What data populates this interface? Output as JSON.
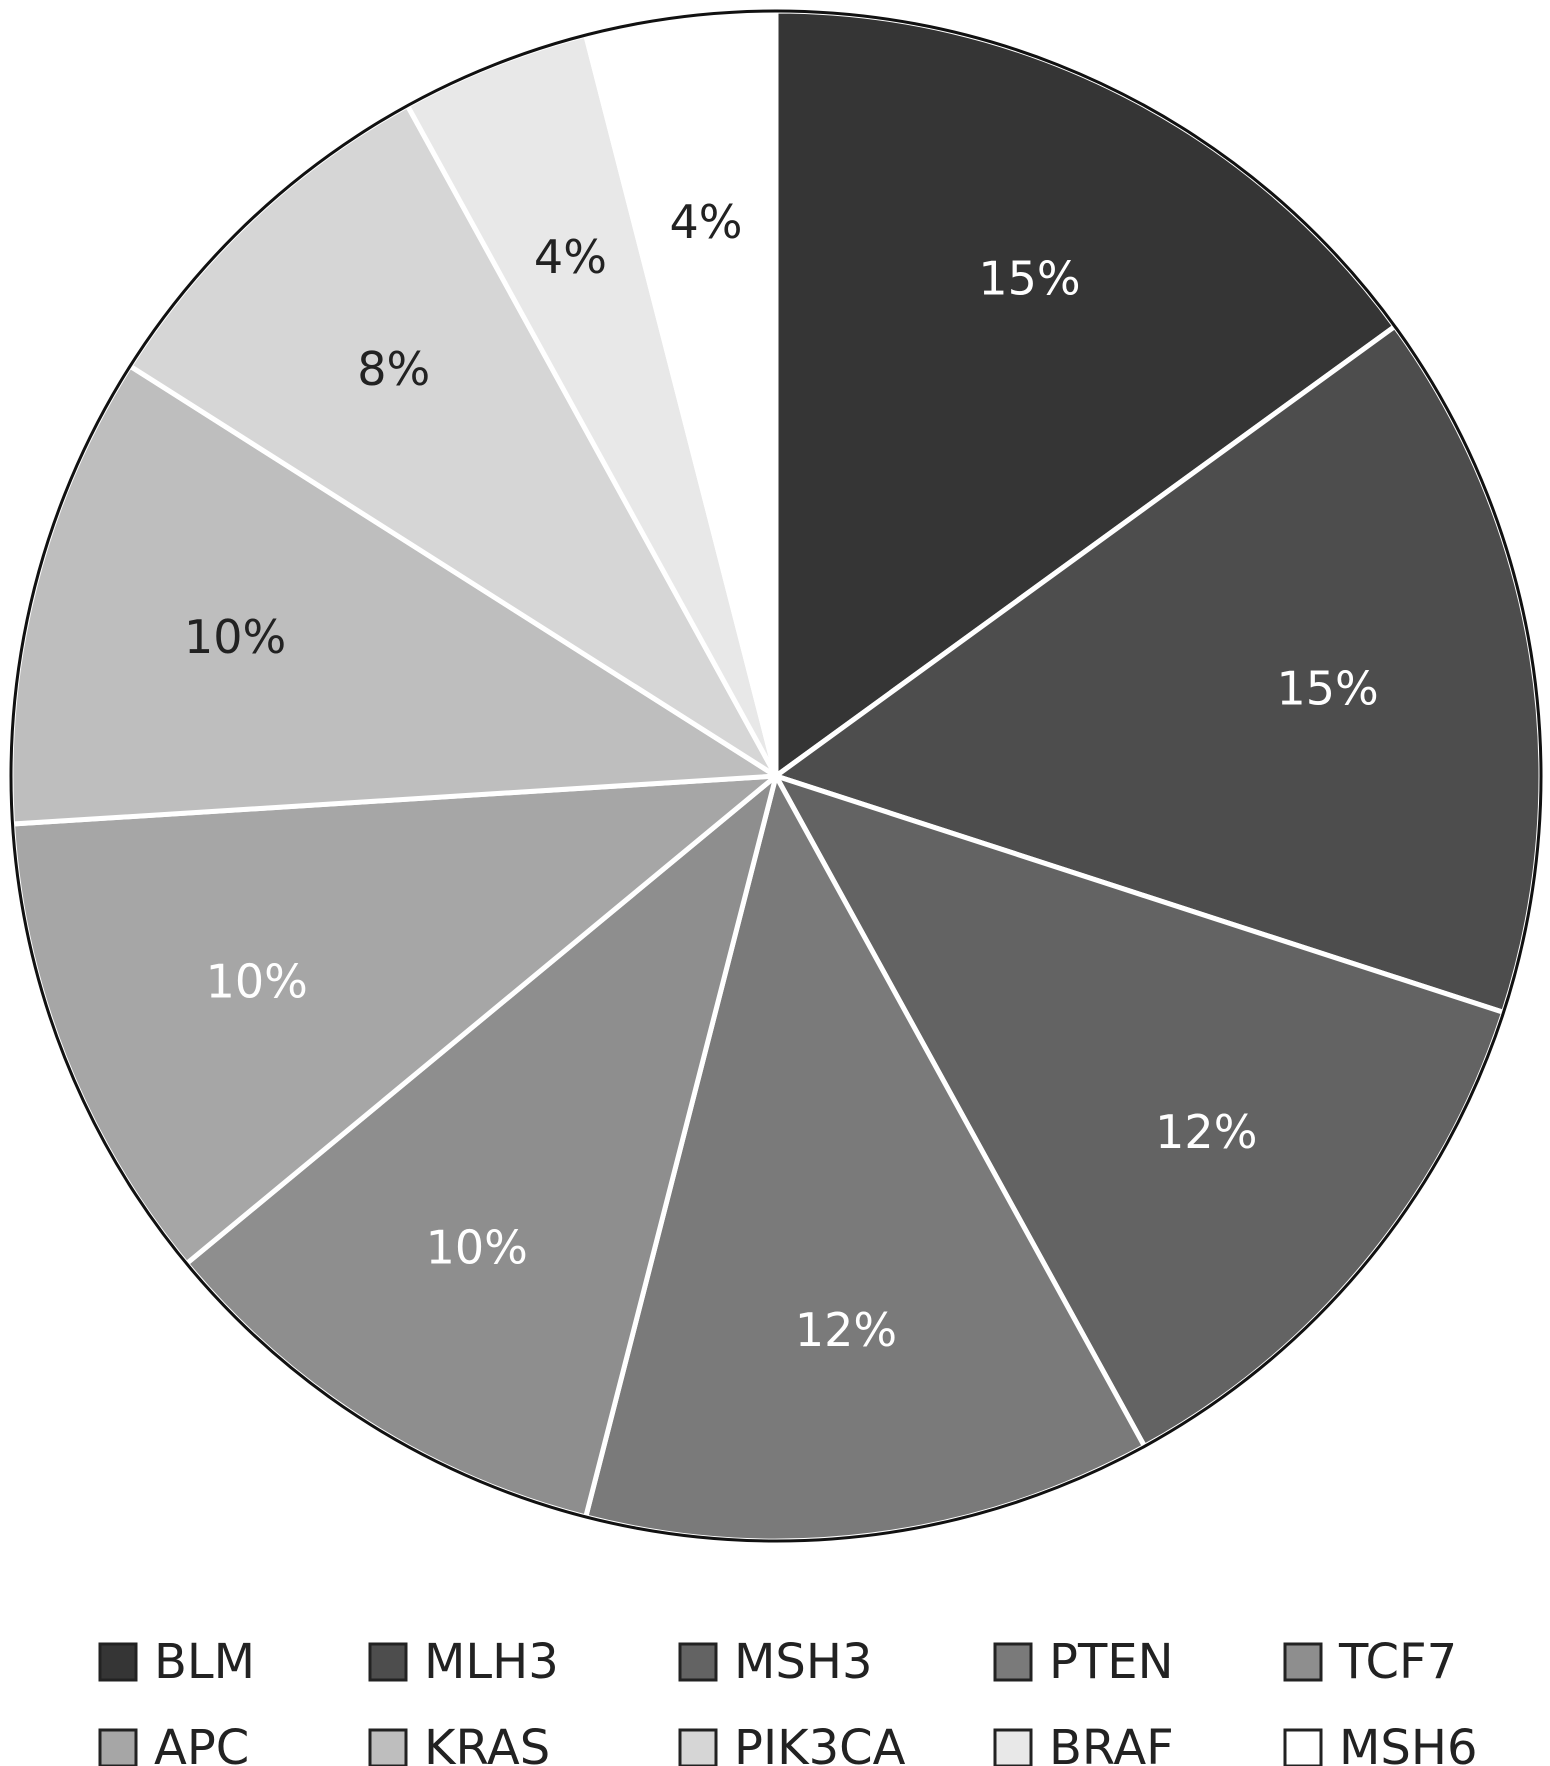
{
  "chart_data": {
    "type": "pie",
    "categories": [
      "BLM",
      "MLH3",
      "MSH3",
      "PTEN",
      "TCF7",
      "APC",
      "KRAS",
      "PIK3CA",
      "BRAF",
      "MSH6"
    ],
    "values": [
      15,
      15,
      12,
      12,
      10,
      10,
      10,
      8,
      4,
      4
    ],
    "labels": [
      "15%",
      "15%",
      "12%",
      "12%",
      "10%",
      "10%",
      "10%",
      "8%",
      "4%",
      "4%"
    ],
    "unit": "%",
    "colors": [
      "#353535",
      "#4d4d4d",
      "#636363",
      "#7a7a7a",
      "#8e8e8e",
      "#a6a6a6",
      "#bebebe",
      "#d6d6d6",
      "#e8e8e8",
      "#ffffff"
    ],
    "label_colors": [
      "#ffffff",
      "#ffffff",
      "#ffffff",
      "#ffffff",
      "#ffffff",
      "#ffffff",
      "#222222",
      "#222222",
      "#222222",
      "#222222"
    ],
    "start_angle": "12 o'clock",
    "direction": "clockwise",
    "legend": {
      "position": "bottom",
      "columns": 5,
      "entries": [
        "BLM",
        "MLH3",
        "MSH3",
        "PTEN",
        "TCF7",
        "APC",
        "KRAS",
        "PIK3CA",
        "BRAF",
        "MSH6"
      ]
    },
    "title": "",
    "subtitle": ""
  }
}
